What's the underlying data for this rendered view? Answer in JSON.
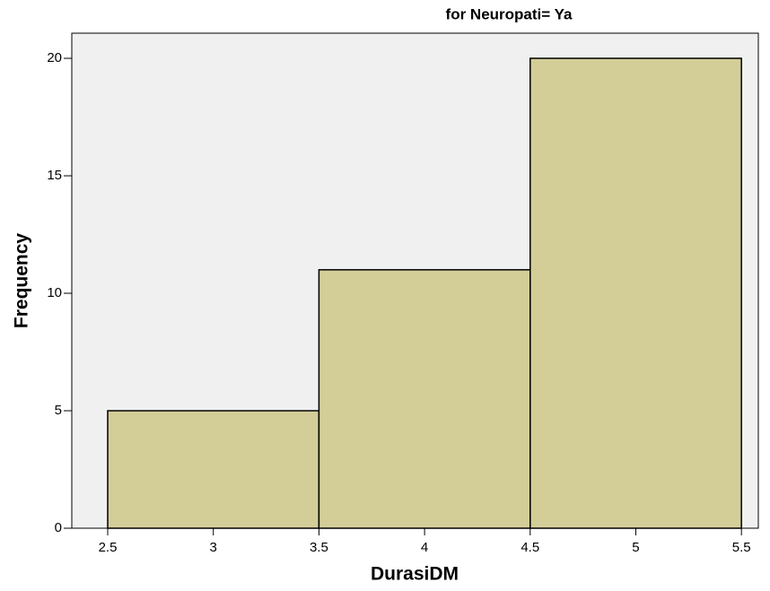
{
  "chart_data": {
    "type": "histogram",
    "title": "for Neuropati= Ya",
    "x_label": "DurasiDM",
    "y_label": "Frequency",
    "bins": [
      2.5,
      3.5,
      4.5,
      5.5
    ],
    "values": [
      5,
      11,
      20
    ],
    "color": "#d3cd98",
    "edge_color": "#000000",
    "background": "#f0f0f0",
    "xlim": [
      2.33,
      5.58
    ],
    "ylim": [
      0,
      21.07
    ],
    "xticks": [
      2.5,
      3,
      3.5,
      4,
      4.5,
      5,
      5.5
    ],
    "yticks": [
      0,
      5,
      10,
      15,
      20
    ],
    "grid": false
  }
}
